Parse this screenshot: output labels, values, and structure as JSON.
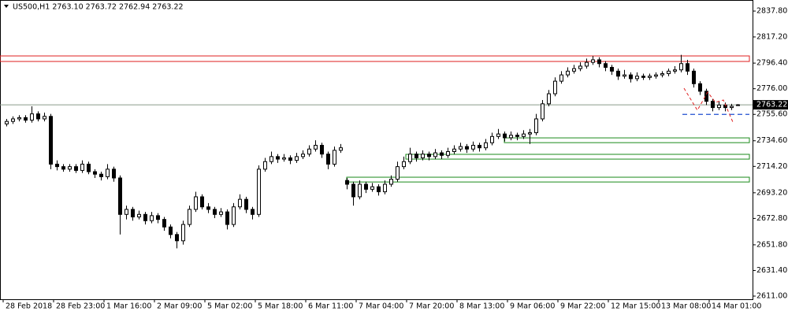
{
  "chart_data": {
    "type": "candlestick",
    "title": "US500,H1  2763.10 2763.72 2762.94 2763.22",
    "ylim": [
      2608.5,
      2846.6
    ],
    "yticks": [
      {
        "value": 2837.8,
        "label": "2837.80"
      },
      {
        "value": 2817.2,
        "label": "2817.20"
      },
      {
        "value": 2796.4,
        "label": "2796.40"
      },
      {
        "value": 2776,
        "label": "2776.00"
      },
      {
        "value": 2755.6,
        "label": "2755.60"
      },
      {
        "value": 2734.6,
        "label": "2734.60"
      },
      {
        "value": 2714.2,
        "label": "2714.20"
      },
      {
        "value": 2693.2,
        "label": "2693.20"
      },
      {
        "value": 2672.8,
        "label": "2672.80"
      },
      {
        "value": 2651.8,
        "label": "2651.80"
      },
      {
        "value": 2631.4,
        "label": "2631.40"
      },
      {
        "value": 2611,
        "label": "2611.00"
      }
    ],
    "current_price": 2763.22,
    "zones": [
      {
        "top": 2802.1,
        "bottom": 2797.7,
        "color": "#e02020"
      },
      {
        "top": 2736.9,
        "bottom": 2733.1,
        "color": "#1a8a1a"
      },
      {
        "top": 2723.8,
        "bottom": 2720.0,
        "color": "#1a8a1a"
      },
      {
        "top": 2705.6,
        "bottom": 2701.8,
        "color": "#1a8a1a"
      }
    ],
    "support_line": {
      "value": 2755.6,
      "color": "#1f4fd0"
    },
    "categories": [
      "28 Feb 2018",
      null,
      null,
      null,
      null,
      null,
      null,
      null,
      "28 Feb 23:00",
      null,
      null,
      null,
      null,
      null,
      null,
      null,
      "1 Mar 16:00",
      null,
      null,
      null,
      null,
      null,
      null,
      null,
      "2 Mar 09:00",
      null,
      null,
      null,
      null,
      null,
      null,
      null,
      "5 Mar 02:00",
      null,
      null,
      null,
      null,
      null,
      null,
      null,
      "5 Mar 18:00",
      null,
      null,
      null,
      null,
      null,
      null,
      null,
      "6 Mar 11:00",
      null,
      null,
      null,
      null,
      null,
      null,
      null,
      "7 Mar 04:00",
      null,
      null,
      null,
      null,
      null,
      null,
      null,
      "7 Mar 20:00",
      null,
      null,
      null,
      null,
      null,
      null,
      null,
      "8 Mar 13:00",
      null,
      null,
      null,
      null,
      null,
      null,
      null,
      "9 Mar 06:00",
      null,
      null,
      null,
      null,
      null,
      null,
      null,
      "9 Mar 22:00",
      null,
      null,
      null,
      null,
      null,
      null,
      null,
      "12 Mar 15:00",
      null,
      null,
      null,
      null,
      null,
      null,
      null,
      "13 Mar 08:00",
      null,
      null,
      null,
      null,
      null,
      null,
      null,
      "14 Mar 01:00",
      null,
      null,
      null,
      null
    ],
    "candles": [
      [
        2748,
        2752,
        2746,
        2750
      ],
      [
        2750,
        2754,
        2748,
        2752
      ],
      [
        2752,
        2755,
        2750,
        2753
      ],
      [
        2753,
        2755,
        2749,
        2751
      ],
      [
        2751,
        2762,
        2749,
        2756
      ],
      [
        2756,
        2758,
        2750,
        2752
      ],
      [
        2752,
        2757,
        2750,
        2754
      ],
      [
        2754,
        2756,
        2712,
        2716
      ],
      [
        2716,
        2719,
        2711,
        2714
      ],
      [
        2714,
        2716,
        2710,
        2712
      ],
      [
        2712,
        2716,
        2710,
        2714
      ],
      [
        2714,
        2716,
        2709,
        2711
      ],
      [
        2711,
        2719,
        2709,
        2716
      ],
      [
        2716,
        2718,
        2708,
        2710
      ],
      [
        2710,
        2712,
        2705,
        2708
      ],
      [
        2708,
        2710,
        2703,
        2706
      ],
      [
        2706,
        2716,
        2704,
        2712
      ],
      [
        2712,
        2714,
        2702,
        2705
      ],
      [
        2705,
        2707,
        2660,
        2676
      ],
      [
        2676,
        2683,
        2672,
        2680
      ],
      [
        2680,
        2682,
        2671,
        2674
      ],
      [
        2674,
        2679,
        2672,
        2676
      ],
      [
        2676,
        2678,
        2668,
        2671
      ],
      [
        2671,
        2678,
        2669,
        2675
      ],
      [
        2675,
        2677,
        2669,
        2672
      ],
      [
        2672,
        2674,
        2663,
        2666
      ],
      [
        2666,
        2668,
        2657,
        2660
      ],
      [
        2660,
        2662,
        2649,
        2655
      ],
      [
        2655,
        2671,
        2652,
        2668
      ],
      [
        2668,
        2683,
        2666,
        2680
      ],
      [
        2680,
        2694,
        2678,
        2690
      ],
      [
        2690,
        2692,
        2680,
        2682
      ],
      [
        2682,
        2685,
        2677,
        2680
      ],
      [
        2680,
        2682,
        2673,
        2676
      ],
      [
        2676,
        2681,
        2674,
        2678
      ],
      [
        2678,
        2680,
        2664,
        2668
      ],
      [
        2668,
        2685,
        2666,
        2682
      ],
      [
        2682,
        2692,
        2680,
        2688
      ],
      [
        2688,
        2690,
        2677,
        2680
      ],
      [
        2680,
        2682,
        2672,
        2676
      ],
      [
        2676,
        2715,
        2674,
        2712
      ],
      [
        2712,
        2721,
        2710,
        2718
      ],
      [
        2718,
        2726,
        2716,
        2722
      ],
      [
        2722,
        2724,
        2717,
        2720
      ],
      [
        2720,
        2724,
        2718,
        2721
      ],
      [
        2721,
        2723,
        2716,
        2719
      ],
      [
        2719,
        2725,
        2717,
        2722
      ],
      [
        2722,
        2727,
        2720,
        2724
      ],
      [
        2724,
        2731,
        2722,
        2728
      ],
      [
        2728,
        2735,
        2726,
        2731
      ],
      [
        2731,
        2733,
        2721,
        2724
      ],
      [
        2724,
        2726,
        2712,
        2716
      ],
      [
        2716,
        2730,
        2714,
        2727
      ],
      [
        2727,
        2732,
        2725,
        2729
      ],
      [
        2703,
        2705,
        2696,
        2700
      ],
      [
        2700,
        2702,
        2683,
        2690
      ],
      [
        2690,
        2703,
        2688,
        2700
      ],
      [
        2700,
        2702,
        2693,
        2696
      ],
      [
        2696,
        2701,
        2694,
        2698
      ],
      [
        2698,
        2700,
        2691,
        2694
      ],
      [
        2694,
        2703,
        2692,
        2700
      ],
      [
        2700,
        2707,
        2698,
        2704
      ],
      [
        2704,
        2718,
        2702,
        2714
      ],
      [
        2714,
        2722,
        2712,
        2718
      ],
      [
        2718,
        2729,
        2716,
        2724
      ],
      [
        2724,
        2726,
        2718,
        2721
      ],
      [
        2721,
        2727,
        2719,
        2724
      ],
      [
        2724,
        2726,
        2719,
        2722
      ],
      [
        2722,
        2728,
        2720,
        2725
      ],
      [
        2725,
        2727,
        2720,
        2723
      ],
      [
        2723,
        2729,
        2721,
        2726
      ],
      [
        2726,
        2731,
        2724,
        2728
      ],
      [
        2728,
        2733,
        2726,
        2730
      ],
      [
        2730,
        2732,
        2725,
        2728
      ],
      [
        2728,
        2734,
        2726,
        2731
      ],
      [
        2731,
        2733,
        2726,
        2729
      ],
      [
        2729,
        2736,
        2727,
        2733
      ],
      [
        2733,
        2741,
        2731,
        2738
      ],
      [
        2738,
        2744,
        2736,
        2740
      ],
      [
        2740,
        2742,
        2734,
        2737
      ],
      [
        2737,
        2742,
        2735,
        2739
      ],
      [
        2739,
        2741,
        2735,
        2738
      ],
      [
        2738,
        2743,
        2736,
        2740
      ],
      [
        2740,
        2744,
        2732,
        2741
      ],
      [
        2741,
        2756,
        2739,
        2752
      ],
      [
        2752,
        2767,
        2750,
        2764
      ],
      [
        2764,
        2775,
        2762,
        2772
      ],
      [
        2772,
        2785,
        2770,
        2782
      ],
      [
        2782,
        2790,
        2780,
        2787
      ],
      [
        2787,
        2793,
        2785,
        2790
      ],
      [
        2790,
        2795,
        2788,
        2792
      ],
      [
        2792,
        2797,
        2790,
        2794
      ],
      [
        2794,
        2800,
        2792,
        2797
      ],
      [
        2797,
        2802,
        2795,
        2799
      ],
      [
        2799,
        2801,
        2793,
        2796
      ],
      [
        2796,
        2798,
        2790,
        2793
      ],
      [
        2793,
        2795,
        2787,
        2790
      ],
      [
        2790,
        2792,
        2783,
        2786
      ],
      [
        2786,
        2791,
        2784,
        2787
      ],
      [
        2787,
        2789,
        2781,
        2784
      ],
      [
        2784,
        2789,
        2782,
        2786
      ],
      [
        2786,
        2788,
        2783,
        2785
      ],
      [
        2785,
        2788,
        2783,
        2786
      ],
      [
        2786,
        2789,
        2784,
        2787
      ],
      [
        2787,
        2790,
        2785,
        2788
      ],
      [
        2788,
        2792,
        2786,
        2790
      ],
      [
        2790,
        2794,
        2788,
        2791
      ],
      [
        2791,
        2803,
        2789,
        2796
      ],
      [
        2796,
        2799,
        2787,
        2790
      ],
      [
        2790,
        2792,
        2777,
        2780
      ],
      [
        2780,
        2782,
        2771,
        2774
      ],
      [
        2774,
        2776,
        2763,
        2766
      ],
      [
        2766,
        2768,
        2758,
        2761
      ],
      [
        2761,
        2766,
        2759,
        2763
      ],
      [
        2763,
        2765,
        2758,
        2761
      ],
      [
        2761,
        2764,
        2759,
        2762
      ],
      [
        2763.1,
        2763.72,
        2762.94,
        2763.22
      ]
    ]
  }
}
